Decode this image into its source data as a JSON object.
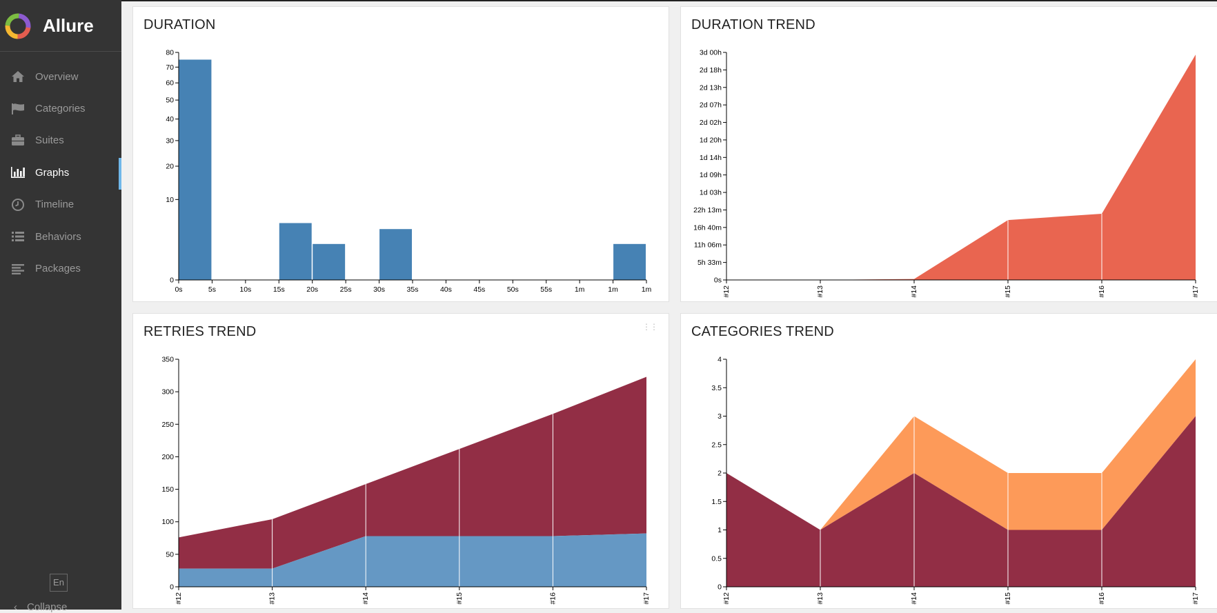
{
  "app": {
    "name": "Allure"
  },
  "sidebar": {
    "items": [
      {
        "label": "Overview",
        "icon": "home-icon"
      },
      {
        "label": "Categories",
        "icon": "flag-icon"
      },
      {
        "label": "Suites",
        "icon": "briefcase-icon"
      },
      {
        "label": "Graphs",
        "icon": "bar-chart-icon",
        "active": true
      },
      {
        "label": "Timeline",
        "icon": "clock-icon"
      },
      {
        "label": "Behaviors",
        "icon": "list-icon"
      },
      {
        "label": "Packages",
        "icon": "align-left-icon"
      }
    ],
    "language": "En",
    "collapse_label": "Collapse"
  },
  "widgets": {
    "duration": {
      "title": "DURATION"
    },
    "duration_trend": {
      "title": "DURATION TREND"
    },
    "retries_trend": {
      "title": "RETRIES TREND"
    },
    "categories_trend": {
      "title": "CATEGORIES TREND"
    }
  },
  "colors": {
    "accent": "#6fb7e9",
    "duration_bar": "#4682b4",
    "duration_trend": "#e96550",
    "retries_dark": "#922e45",
    "retries_light": "#6598c4",
    "categories_dark": "#922e45",
    "categories_light": "#fd9a59"
  },
  "chart_data": [
    {
      "id": "duration",
      "type": "bar",
      "title": "DURATION",
      "x_ticks": [
        "0s",
        "5s",
        "10s",
        "15s",
        "20s",
        "25s",
        "30s",
        "35s",
        "40s",
        "45s",
        "50s",
        "55s",
        "1m",
        "1m",
        "1m"
      ],
      "y_ticks": [
        "0",
        "10",
        "20",
        "30",
        "40",
        "50",
        "60",
        "70",
        "80"
      ],
      "y_scale": "sqrt",
      "ylim": [
        0,
        80
      ],
      "bins": [
        {
          "start_s": 0,
          "end_s": 5,
          "value": 75
        },
        {
          "start_s": 15,
          "end_s": 20,
          "value": 5
        },
        {
          "start_s": 20,
          "end_s": 25,
          "value": 2
        },
        {
          "start_s": 30,
          "end_s": 35,
          "value": 4
        },
        {
          "start_s": 65,
          "end_s": 70,
          "value": 2
        }
      ]
    },
    {
      "id": "duration_trend",
      "type": "area",
      "title": "DURATION TREND",
      "categories": [
        "#12",
        "#13",
        "#14",
        "#15",
        "#16",
        "#17"
      ],
      "y_ticks": [
        "0s",
        "5h 33m",
        "11h 06m",
        "16h 40m",
        "22h 13m",
        "1d 03h",
        "1d 09h",
        "1d 14h",
        "1d 20h",
        "2d 02h",
        "2d 07h",
        "2d 13h",
        "2d 18h",
        "3d 00h"
      ],
      "ylim_hours": [
        0,
        72.2
      ],
      "values_hours": [
        0,
        0,
        0.3,
        19,
        21,
        71.5
      ]
    },
    {
      "id": "retries_trend",
      "type": "area",
      "title": "RETRIES TREND",
      "categories": [
        "#12",
        "#13",
        "#14",
        "#15",
        "#16",
        "#17"
      ],
      "y_ticks": [
        "0",
        "50",
        "100",
        "150",
        "200",
        "250",
        "300",
        "350"
      ],
      "ylim": [
        0,
        350
      ],
      "series": [
        {
          "values": [
            28,
            28,
            78,
            78,
            78,
            82
          ]
        },
        {
          "values": [
            76,
            104,
            158,
            212,
            266,
            323
          ]
        }
      ]
    },
    {
      "id": "categories_trend",
      "type": "area",
      "title": "CATEGORIES TREND",
      "categories": [
        "#12",
        "#13",
        "#14",
        "#15",
        "#16",
        "#17"
      ],
      "y_ticks": [
        "0",
        "0.5",
        "1",
        "1.5",
        "2",
        "2.5",
        "3",
        "3.5",
        "4"
      ],
      "ylim": [
        0,
        4
      ],
      "series": [
        {
          "values": [
            2,
            1,
            2,
            1,
            1,
            3
          ]
        },
        {
          "values": [
            0,
            0,
            1,
            1,
            1,
            1
          ]
        }
      ]
    }
  ]
}
